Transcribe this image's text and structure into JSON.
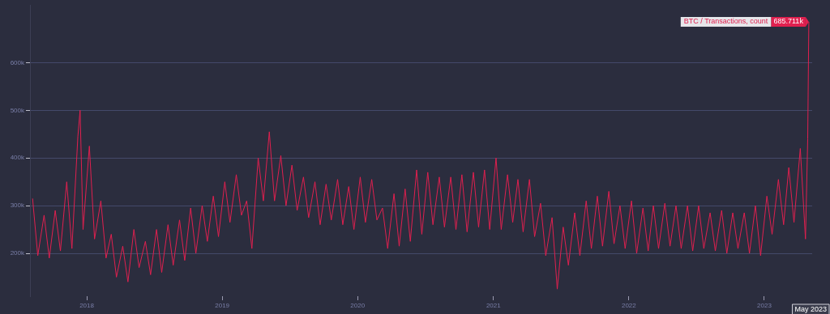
{
  "chart_data": {
    "type": "line",
    "ylim": [
      110000,
      720000
    ],
    "yticks": [
      {
        "value": 200000,
        "label": "200k"
      },
      {
        "value": 300000,
        "label": "300k"
      },
      {
        "value": 400000,
        "label": "400k"
      },
      {
        "value": 500000,
        "label": "500k"
      },
      {
        "value": 600000,
        "label": "600k"
      }
    ],
    "xlim": [
      "2017-08-01",
      "2023-05-10"
    ],
    "xticks": [
      "2018",
      "2019",
      "2020",
      "2021",
      "2022",
      "2023"
    ],
    "grid": "y",
    "legend": "top right",
    "marker": "none",
    "line_style": "solid",
    "annotations": [
      {
        "text": "685.711k",
        "x": "2023-05-01",
        "y": 685711
      },
      "May 2023"
    ],
    "series": [
      {
        "name": "BTC / Transactions, count",
        "color": "#e0204f",
        "x": [
          "2017-08-08",
          "2017-08-22",
          "2017-09-08",
          "2017-09-22",
          "2017-10-08",
          "2017-10-22",
          "2017-11-08",
          "2017-11-22",
          "2017-12-08",
          "2017-12-14",
          "2017-12-22",
          "2018-01-08",
          "2018-01-22",
          "2018-02-08",
          "2018-02-22",
          "2018-03-08",
          "2018-03-22",
          "2018-04-08",
          "2018-04-22",
          "2018-05-08",
          "2018-05-22",
          "2018-06-08",
          "2018-06-22",
          "2018-07-08",
          "2018-07-22",
          "2018-08-08",
          "2018-08-22",
          "2018-09-08",
          "2018-09-22",
          "2018-10-08",
          "2018-10-22",
          "2018-11-08",
          "2018-11-22",
          "2018-12-08",
          "2018-12-22",
          "2019-01-08",
          "2019-01-22",
          "2019-02-08",
          "2019-02-22",
          "2019-03-08",
          "2019-03-22",
          "2019-04-08",
          "2019-04-22",
          "2019-05-08",
          "2019-05-22",
          "2019-06-08",
          "2019-06-22",
          "2019-07-08",
          "2019-07-22",
          "2019-08-08",
          "2019-08-22",
          "2019-09-08",
          "2019-09-22",
          "2019-10-08",
          "2019-10-22",
          "2019-11-08",
          "2019-11-22",
          "2019-12-08",
          "2019-12-22",
          "2020-01-08",
          "2020-01-22",
          "2020-02-08",
          "2020-02-22",
          "2020-03-08",
          "2020-03-22",
          "2020-04-08",
          "2020-04-22",
          "2020-05-08",
          "2020-05-22",
          "2020-06-08",
          "2020-06-22",
          "2020-07-08",
          "2020-07-22",
          "2020-08-08",
          "2020-08-22",
          "2020-09-08",
          "2020-09-22",
          "2020-10-08",
          "2020-10-22",
          "2020-11-08",
          "2020-11-22",
          "2020-12-08",
          "2020-12-22",
          "2021-01-08",
          "2021-01-22",
          "2021-02-08",
          "2021-02-22",
          "2021-03-08",
          "2021-03-22",
          "2021-04-08",
          "2021-04-22",
          "2021-05-08",
          "2021-05-22",
          "2021-06-08",
          "2021-06-22",
          "2021-07-08",
          "2021-07-22",
          "2021-08-08",
          "2021-08-22",
          "2021-09-08",
          "2021-09-22",
          "2021-10-08",
          "2021-10-22",
          "2021-11-08",
          "2021-11-22",
          "2021-12-08",
          "2021-12-22",
          "2022-01-08",
          "2022-01-22",
          "2022-02-08",
          "2022-02-22",
          "2022-03-08",
          "2022-03-22",
          "2022-04-08",
          "2022-04-22",
          "2022-05-08",
          "2022-05-22",
          "2022-06-08",
          "2022-06-22",
          "2022-07-08",
          "2022-07-22",
          "2022-08-08",
          "2022-08-22",
          "2022-09-08",
          "2022-09-22",
          "2022-10-08",
          "2022-10-22",
          "2022-11-08",
          "2022-11-22",
          "2022-12-08",
          "2022-12-22",
          "2023-01-08",
          "2023-01-22",
          "2023-02-08",
          "2023-02-22",
          "2023-03-08",
          "2023-03-22",
          "2023-04-08",
          "2023-04-22",
          "2023-04-28",
          "2023-05-01"
        ],
        "values": [
          315000,
          195000,
          280000,
          190000,
          290000,
          205000,
          350000,
          210000,
          445000,
          500000,
          250000,
          425000,
          230000,
          310000,
          190000,
          240000,
          150000,
          215000,
          140000,
          250000,
          170000,
          225000,
          155000,
          250000,
          160000,
          260000,
          175000,
          270000,
          185000,
          295000,
          200000,
          300000,
          225000,
          320000,
          235000,
          350000,
          265000,
          365000,
          280000,
          310000,
          210000,
          400000,
          310000,
          455000,
          310000,
          405000,
          300000,
          385000,
          290000,
          360000,
          275000,
          350000,
          260000,
          345000,
          270000,
          355000,
          260000,
          340000,
          250000,
          360000,
          265000,
          355000,
          270000,
          295000,
          210000,
          325000,
          215000,
          335000,
          225000,
          375000,
          240000,
          370000,
          260000,
          360000,
          255000,
          360000,
          250000,
          365000,
          245000,
          370000,
          255000,
          375000,
          250000,
          400000,
          250000,
          365000,
          265000,
          355000,
          245000,
          355000,
          235000,
          305000,
          195000,
          275000,
          125000,
          255000,
          175000,
          285000,
          195000,
          310000,
          210000,
          320000,
          215000,
          330000,
          220000,
          300000,
          210000,
          310000,
          200000,
          295000,
          205000,
          300000,
          210000,
          305000,
          215000,
          300000,
          210000,
          300000,
          205000,
          300000,
          210000,
          285000,
          205000,
          290000,
          200000,
          285000,
          210000,
          285000,
          200000,
          300000,
          195000,
          320000,
          240000,
          355000,
          260000,
          380000,
          265000,
          420000,
          230000,
          440000,
          685711
        ]
      }
    ]
  }
}
